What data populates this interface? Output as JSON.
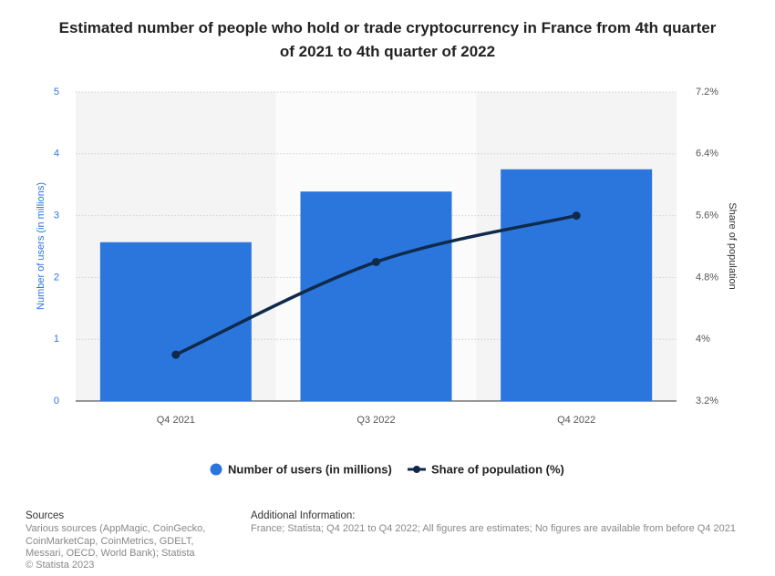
{
  "chart_data": {
    "type": "bar",
    "title": "Estimated number of people who hold or trade cryptocurrency in France from 4th quarter of 2021 to 4th quarter of 2022",
    "categories": [
      "Q4 2021",
      "Q3 2022",
      "Q4 2022"
    ],
    "series": [
      {
        "name": "Number of users (in millions)",
        "color": "#2a76dd",
        "type": "bar",
        "values": [
          2.57,
          3.39,
          3.75
        ]
      },
      {
        "name": "Share of population (%)",
        "color": "#0f2a4a",
        "type": "line",
        "axis": "y2",
        "values": [
          3.8,
          5.0,
          5.6
        ]
      }
    ],
    "y_label": "Number of users (in millions)",
    "y2_label": "Share of population",
    "ylim": [
      0,
      5
    ],
    "yticks": [
      0,
      1,
      2,
      3,
      4,
      5
    ],
    "y2lim": [
      3.2,
      7.2
    ],
    "y2ticks": [
      {
        "value": 3.2,
        "label": "3.2%"
      },
      {
        "value": 4,
        "label": "4%"
      },
      {
        "value": 4.8,
        "label": "4.8%"
      },
      {
        "value": 5.6,
        "label": "5.6%"
      },
      {
        "value": 6.4,
        "label": "6.4%"
      },
      {
        "value": 7.2,
        "label": "7.2%"
      }
    ],
    "grid": true
  },
  "footer": {
    "sources_title": "Sources",
    "sources": "Various sources (AppMagic, CoinGecko, CoinMarketCap, CoinMetrics, GDELT, Messari, OECD, World Bank); Statista",
    "copyright": "© Statista 2023",
    "info_title": "Additional Information:",
    "info": "France; Statista; Q4 2021 to Q4 2022; All figures are estimates; No figures are available from before Q4 2021"
  }
}
